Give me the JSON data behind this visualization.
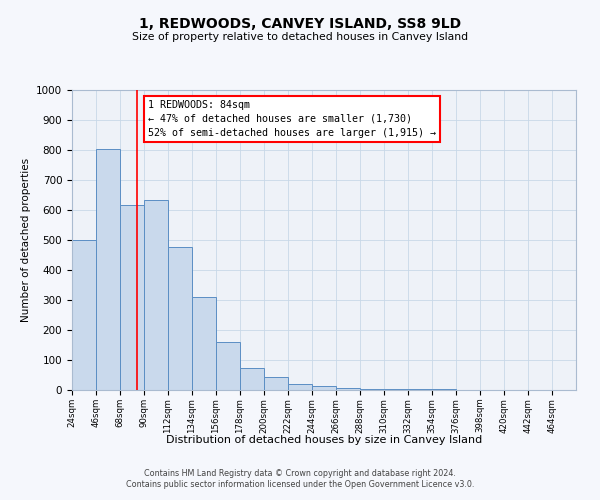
{
  "title": "1, REDWOODS, CANVEY ISLAND, SS8 9LD",
  "subtitle": "Size of property relative to detached houses in Canvey Island",
  "xlabel": "Distribution of detached houses by size in Canvey Island",
  "ylabel": "Number of detached properties",
  "bar_values": [
    500,
    805,
    618,
    635,
    478,
    310,
    160,
    75,
    45,
    20,
    15,
    8,
    5,
    5,
    3,
    2,
    1,
    1,
    0,
    0
  ],
  "bin_labels": [
    "24sqm",
    "46sqm",
    "68sqm",
    "90sqm",
    "112sqm",
    "134sqm",
    "156sqm",
    "178sqm",
    "200sqm",
    "222sqm",
    "244sqm",
    "266sqm",
    "288sqm",
    "310sqm",
    "332sqm",
    "354sqm",
    "376sqm",
    "398sqm",
    "420sqm",
    "442sqm",
    "464sqm"
  ],
  "bin_edges": [
    24,
    46,
    68,
    90,
    112,
    134,
    156,
    178,
    200,
    222,
    244,
    266,
    288,
    310,
    332,
    354,
    376,
    398,
    420,
    442,
    464
  ],
  "bar_color": "#c9d9ec",
  "bar_edge_color": "#5b8ec4",
  "vline_x": 84,
  "vline_color": "red",
  "annotation_title": "1 REDWOODS: 84sqm",
  "annotation_line1": "← 47% of detached houses are smaller (1,730)",
  "annotation_line2": "52% of semi-detached houses are larger (1,915) →",
  "ylim": [
    0,
    1000
  ],
  "yticks": [
    0,
    100,
    200,
    300,
    400,
    500,
    600,
    700,
    800,
    900,
    1000
  ],
  "grid_color": "#c8d8e8",
  "bg_color": "#eef2f8",
  "fig_bg_color": "#f5f7fc",
  "footer1": "Contains HM Land Registry data © Crown copyright and database right 2024.",
  "footer2": "Contains public sector information licensed under the Open Government Licence v3.0."
}
